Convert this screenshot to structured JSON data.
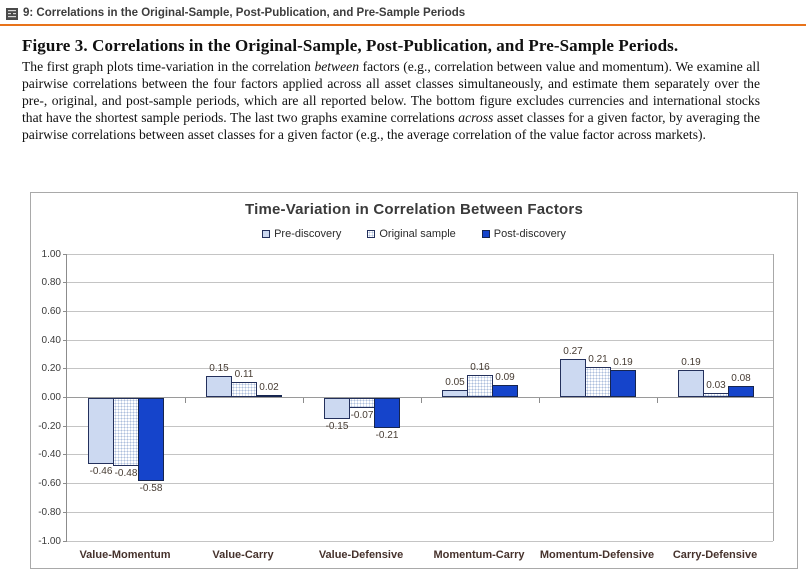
{
  "header": {
    "icon": "figure-icon",
    "label": "9: Correlations in the Original-Sample, Post-Publication, and Pre-Sample Periods"
  },
  "caption": {
    "title": "Figure 3. Correlations in the Original-Sample, Post-Publication, and Pre-Sample Periods.",
    "body_parts": {
      "p1": "The first graph plots time-variation in the correlation ",
      "i1": "between",
      "p2": " factors (e.g., correlation between value and momentum). We examine all pairwise correlations between the four factors applied across all asset classes simultaneously, and estimate them separately over the pre-, original, and post-sample periods, which are all reported below. The bottom figure excludes currencies and international stocks that have the shortest sample periods. The last two graphs examine correlations ",
      "i2": "across",
      "p3": " asset classes for a given factor, by averaging the pairwise correlations between asset classes for a given factor (e.g., the average correlation of the value factor across markets)."
    }
  },
  "chart_data": {
    "type": "bar",
    "title": "Time-Variation in Correlation Between Factors",
    "categories": [
      "Value-Momentum",
      "Value-Carry",
      "Value-Defensive",
      "Momentum-Carry",
      "Momentum-Defensive",
      "Carry-Defensive"
    ],
    "series": [
      {
        "name": "Pre-discovery",
        "style": "light",
        "values": [
          -0.46,
          0.15,
          -0.15,
          0.05,
          0.27,
          0.19
        ]
      },
      {
        "name": "Original sample",
        "style": "dotted",
        "values": [
          -0.48,
          0.11,
          -0.07,
          0.16,
          0.21,
          0.03
        ]
      },
      {
        "name": "Post-discovery",
        "style": "solid",
        "values": [
          -0.58,
          0.02,
          -0.21,
          0.09,
          0.19,
          0.08
        ]
      }
    ],
    "ylim": [
      -1.0,
      1.0
    ],
    "ytick_step": 0.2,
    "grid": true,
    "legend_position": "top",
    "data_labels": true,
    "xlabel": "",
    "ylabel": ""
  },
  "colors": {
    "accent_rule": "#e8731a",
    "bar_light": "#ccd9f1",
    "bar_solid": "#1544cb",
    "bar_border": "#23305c",
    "grid": "#c4c4c4",
    "axis": "#8c8c8c",
    "category_label": "#46322c",
    "value_label": "#473c33"
  }
}
